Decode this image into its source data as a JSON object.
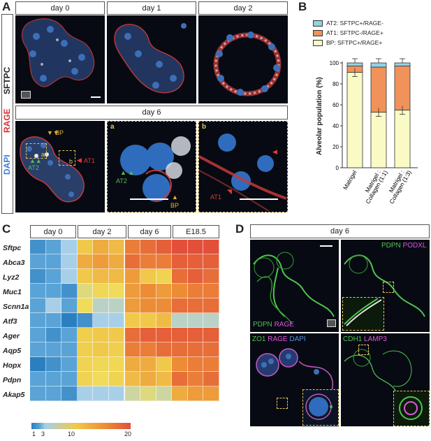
{
  "panels": {
    "a": {
      "letter": "A",
      "side": {
        "sftpc": "SFTPC",
        "rage": "RAGE",
        "dapi": "DAPI"
      },
      "headers": [
        "day 0",
        "day 1",
        "day 2"
      ],
      "day6": "day 6",
      "annot": {
        "bp": "BP",
        "at1": "AT1",
        "at2": "AT2",
        "a": "a",
        "b": "b"
      },
      "inset_a": {
        "letter": "a",
        "at2": "AT2",
        "bp": "BP"
      },
      "inset_b": {
        "letter": "b",
        "at1": "AT1"
      }
    },
    "b": {
      "letter": "B",
      "ylabel": "Alveolar population (%)",
      "legend": [
        "AT2: SFTPC+/RAGE-",
        "AT1: SFTPC-/RAGE+",
        "BP: SFTPC+/RAGE+"
      ]
    },
    "c": {
      "letter": "C",
      "headers": [
        "day 0",
        "day 2",
        "day 6",
        "E18.5"
      ],
      "genes": [
        "Sftpc",
        "Abca3",
        "Lyz2",
        "Muc1",
        "Scnn1a",
        "Atf3",
        "Ager",
        "Aqp5",
        "Hopx",
        "Pdpn",
        "Akap5"
      ],
      "scale": {
        "t1": "1",
        "t3": "3",
        "t10": "10",
        "t20": "20"
      }
    },
    "d": {
      "letter": "D",
      "header": "day 6",
      "q1": {
        "l1": "PDPN",
        "l2": "RAGE"
      },
      "q2": {
        "l1": "PDPN",
        "l2": "PODXL"
      },
      "q3": {
        "l1": "ZO1",
        "l2": "RAGE",
        "l3": "DAPI"
      },
      "q4": {
        "l1": "CDH1",
        "l2": "LAMP3"
      }
    }
  },
  "chart_data": {
    "type": "bar",
    "stacked": true,
    "categories": [
      "Matrigel",
      "Matrigel : Collagen (1:1)",
      "Matrigel : Collagen (1:3)"
    ],
    "series": [
      {
        "name": "BP: SFTPC+/RAGE+",
        "values": [
          91,
          53,
          55
        ],
        "color": "#fafbc4"
      },
      {
        "name": "AT1: SFTPC-/RAGE+",
        "values": [
          6,
          43,
          42
        ],
        "color": "#f1925a"
      },
      {
        "name": "AT2: SFTPC+/RAGE-",
        "values": [
          3,
          4,
          3
        ],
        "color": "#8fd3e6"
      }
    ],
    "ylim": [
      0,
      100
    ],
    "yticks": [
      "0",
      "20",
      "40",
      "60",
      "80",
      "100"
    ]
  },
  "heatmap": {
    "colors": {
      "dark_blue": "#2b7fc0",
      "blue": "#5aa3d6",
      "light_blue": "#a8cfe8",
      "pale": "#c9e2f0",
      "yellow": "#f0c94a",
      "orange": "#ec8c36",
      "red": "#e2503a"
    },
    "values": [
      [
        2,
        3,
        4,
        12,
        14,
        13,
        17,
        18,
        19,
        20,
        20,
        20
      ],
      [
        3,
        3,
        4,
        14,
        15,
        14,
        18,
        17,
        17,
        19,
        19,
        19
      ],
      [
        2,
        3,
        4,
        12,
        13,
        13,
        15,
        12,
        10,
        18,
        19,
        18
      ],
      [
        3,
        3,
        2,
        7,
        9,
        8,
        15,
        16,
        15,
        16,
        17,
        17
      ],
      [
        3,
        4,
        3,
        8,
        5,
        5,
        15,
        16,
        16,
        18,
        18,
        18
      ],
      [
        3,
        3,
        1,
        2,
        4,
        4,
        12,
        12,
        13,
        5,
        5,
        5
      ],
      [
        3,
        2,
        3,
        11,
        12,
        12,
        18,
        19,
        19,
        19,
        19,
        19
      ],
      [
        3,
        3,
        3,
        11,
        12,
        11,
        17,
        17,
        18,
        18,
        18,
        18
      ],
      [
        1,
        2,
        3,
        10,
        9,
        9,
        14,
        14,
        12,
        16,
        17,
        17
      ],
      [
        3,
        3,
        3,
        10,
        8,
        10,
        13,
        14,
        13,
        18,
        17,
        18
      ],
      [
        3,
        3,
        2,
        4,
        4,
        4,
        6,
        7,
        6,
        14,
        15,
        15
      ]
    ]
  }
}
